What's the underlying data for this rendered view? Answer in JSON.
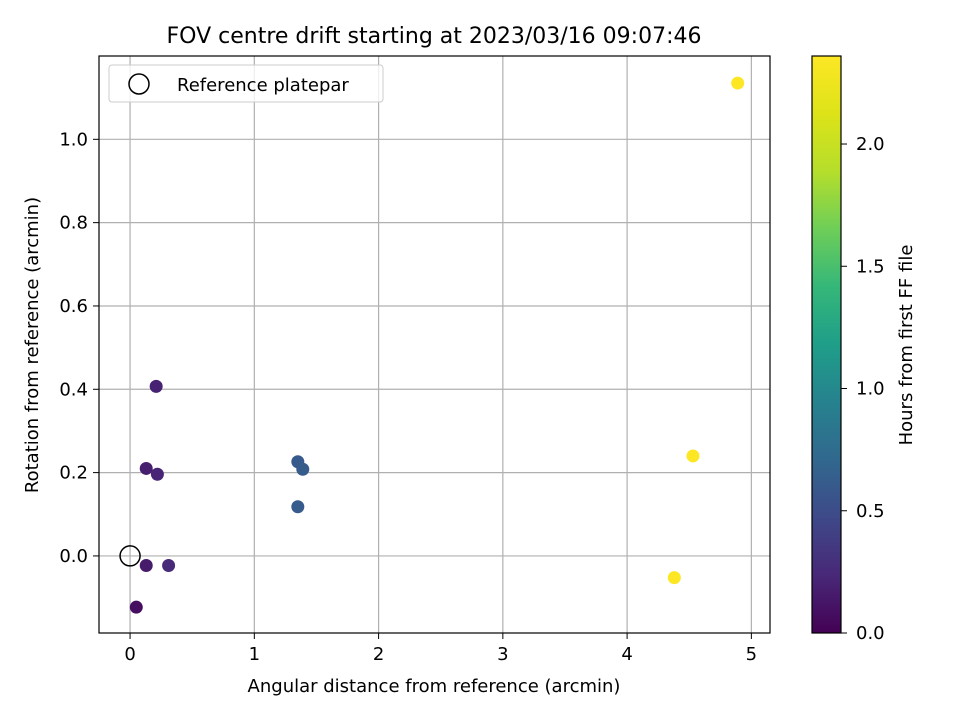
{
  "chart_data": {
    "type": "scatter",
    "title": "FOV centre drift starting at 2023/03/16 09:07:46",
    "xlabel": "Angular distance from reference (arcmin)",
    "ylabel": "Rotation from reference (arcmin)",
    "xlim": [
      -0.25,
      5.15
    ],
    "ylim": [
      -0.185,
      1.2
    ],
    "xticks": [
      0,
      1,
      2,
      3,
      4,
      5
    ],
    "xtick_labels": [
      "0",
      "1",
      "2",
      "3",
      "4",
      "5"
    ],
    "yticks": [
      0.0,
      0.2,
      0.4,
      0.6,
      0.8,
      1.0
    ],
    "ytick_labels": [
      "0.0",
      "0.2",
      "0.4",
      "0.6",
      "0.8",
      "1.0"
    ],
    "grid": true,
    "legend": {
      "placement": "top-left",
      "entries": [
        "Reference platepar"
      ]
    },
    "reference_point": {
      "name": "Reference platepar",
      "x": 0.0,
      "y": 0.0,
      "marker": "open-circle",
      "color": "#000000"
    },
    "points": [
      {
        "x": 0.05,
        "y": -0.123,
        "hours": 0.08
      },
      {
        "x": 0.13,
        "y": -0.023,
        "hours": 0.16
      },
      {
        "x": 0.13,
        "y": 0.21,
        "hours": 0.18
      },
      {
        "x": 0.21,
        "y": 0.407,
        "hours": 0.2
      },
      {
        "x": 0.22,
        "y": 0.196,
        "hours": 0.22
      },
      {
        "x": 0.31,
        "y": -0.023,
        "hours": 0.25
      },
      {
        "x": 1.35,
        "y": 0.226,
        "hours": 0.6
      },
      {
        "x": 1.39,
        "y": 0.208,
        "hours": 0.62
      },
      {
        "x": 1.35,
        "y": 0.118,
        "hours": 0.61
      },
      {
        "x": 4.38,
        "y": -0.052,
        "hours": 2.36
      },
      {
        "x": 4.53,
        "y": 0.24,
        "hours": 2.36
      },
      {
        "x": 4.89,
        "y": 1.135,
        "hours": 2.36
      }
    ],
    "colorbar": {
      "label": "Hours from first FF file",
      "colormap": "viridis",
      "range": [
        0.0,
        2.36
      ],
      "ticks": [
        0.0,
        0.5,
        1.0,
        1.5,
        2.0
      ],
      "tick_labels": [
        "0.0",
        "0.5",
        "1.0",
        "1.5",
        "2.0"
      ]
    }
  }
}
